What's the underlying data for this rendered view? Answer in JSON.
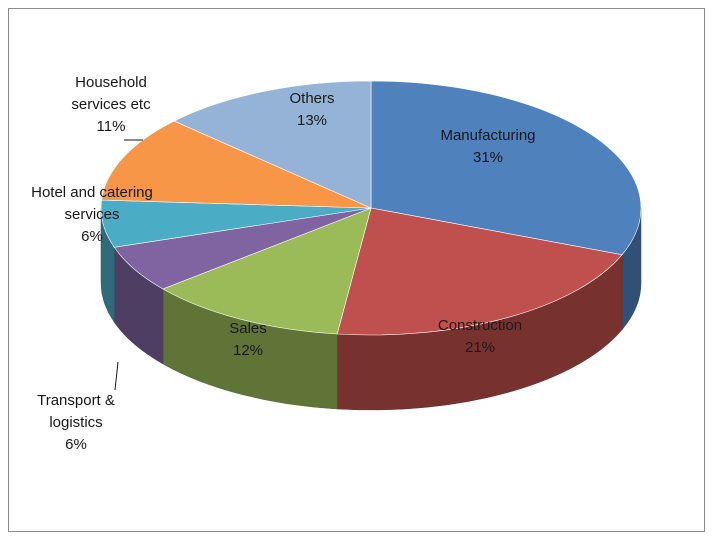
{
  "chart_data": {
    "type": "pie",
    "title": "",
    "style": "3d-exploded-none",
    "series": [
      {
        "name": "Manufacturing",
        "value": 31,
        "percent_label": "31%",
        "color": "#4f81bd"
      },
      {
        "name": "Construction",
        "value": 21,
        "percent_label": "21%",
        "color": "#c0504d"
      },
      {
        "name": "Sales",
        "value": 12,
        "percent_label": "12%",
        "color": "#9bbb59"
      },
      {
        "name": "Transport &\nlogistics",
        "value": 6,
        "percent_label": "6%",
        "color": "#8064a2"
      },
      {
        "name": "Hotel and catering\nservices",
        "value": 6,
        "percent_label": "6%",
        "color": "#4bacc6"
      },
      {
        "name": "Household\nservices etc",
        "value": 11,
        "percent_label": "11%",
        "color": "#f79646"
      },
      {
        "name": "Others",
        "value": 13,
        "percent_label": "13%",
        "color": "#95b3d7"
      }
    ],
    "legend": "none",
    "labels_position": "on-slices-and-outside"
  }
}
